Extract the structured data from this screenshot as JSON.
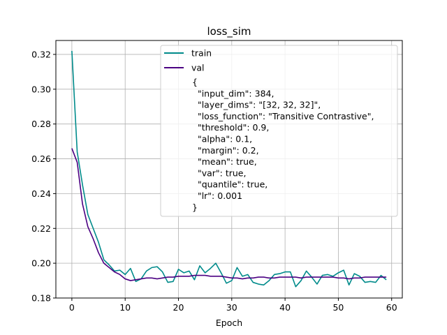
{
  "chart_data": {
    "type": "line",
    "title": "loss_sim",
    "xlabel": "Epoch",
    "ylabel": "",
    "xlim": [
      -3,
      62
    ],
    "ylim": [
      0.18,
      0.328
    ],
    "xticks": [
      0,
      10,
      20,
      30,
      40,
      50,
      60
    ],
    "yticks": [
      0.18,
      0.2,
      0.22,
      0.24,
      0.26,
      0.28,
      0.3,
      0.32
    ],
    "ytick_labels": [
      "0.18",
      "0.20",
      "0.22",
      "0.24",
      "0.26",
      "0.28",
      "0.30",
      "0.32"
    ],
    "grid": true,
    "legend_position": "upper-center",
    "legend_note": [
      "{",
      "  \"input_dim\": 384,",
      "  \"layer_dims\": \"[32, 32, 32]\",",
      "  \"loss_function\": \"Transitive Contrastive\",",
      "  \"threshold\": 0.9,",
      "  \"alpha\": 0.1,",
      "  \"margin\": 0.2,",
      "  \"mean\": true,",
      "  \"var\": true,",
      "  \"quantile\": true,",
      "  \"lr\": 0.001",
      "}"
    ],
    "x": [
      0,
      1,
      2,
      3,
      4,
      5,
      6,
      7,
      8,
      9,
      10,
      11,
      12,
      13,
      14,
      15,
      16,
      17,
      18,
      19,
      20,
      21,
      22,
      23,
      24,
      25,
      26,
      27,
      28,
      29,
      30,
      31,
      32,
      33,
      34,
      35,
      36,
      37,
      38,
      39,
      40,
      41,
      42,
      43,
      44,
      45,
      46,
      47,
      48,
      49,
      50,
      51,
      52,
      53,
      54,
      55,
      56,
      57,
      58,
      59
    ],
    "series": [
      {
        "name": "train",
        "color": "#008b8b",
        "values": [
          0.322,
          0.264,
          0.245,
          0.228,
          0.22,
          0.212,
          0.202,
          0.199,
          0.1955,
          0.196,
          0.1935,
          0.197,
          0.1895,
          0.191,
          0.1955,
          0.1975,
          0.198,
          0.195,
          0.189,
          0.1895,
          0.1965,
          0.1945,
          0.1955,
          0.1905,
          0.1985,
          0.1945,
          0.197,
          0.2,
          0.1945,
          0.1885,
          0.19,
          0.1975,
          0.1925,
          0.1935,
          0.189,
          0.188,
          0.1875,
          0.19,
          0.1935,
          0.194,
          0.195,
          0.195,
          0.1865,
          0.19,
          0.1955,
          0.192,
          0.188,
          0.193,
          0.1935,
          0.1925,
          0.1945,
          0.196,
          0.1875,
          0.194,
          0.1925,
          0.189,
          0.1895,
          0.189,
          0.193,
          0.1905
        ]
      },
      {
        "name": "val",
        "color": "#4b0082",
        "values": [
          0.266,
          0.258,
          0.234,
          0.221,
          0.214,
          0.206,
          0.2,
          0.1975,
          0.195,
          0.1935,
          0.191,
          0.19,
          0.1905,
          0.191,
          0.1915,
          0.1915,
          0.191,
          0.1915,
          0.192,
          0.192,
          0.1925,
          0.1925,
          0.1925,
          0.193,
          0.193,
          0.193,
          0.1925,
          0.1925,
          0.1925,
          0.192,
          0.1915,
          0.1915,
          0.191,
          0.1915,
          0.1915,
          0.192,
          0.192,
          0.1915,
          0.1915,
          0.192,
          0.192,
          0.192,
          0.192,
          0.1915,
          0.192,
          0.192,
          0.192,
          0.192,
          0.192,
          0.192,
          0.1915,
          0.1915,
          0.191,
          0.1915,
          0.1915,
          0.192,
          0.192,
          0.192,
          0.192,
          0.192
        ]
      }
    ]
  }
}
